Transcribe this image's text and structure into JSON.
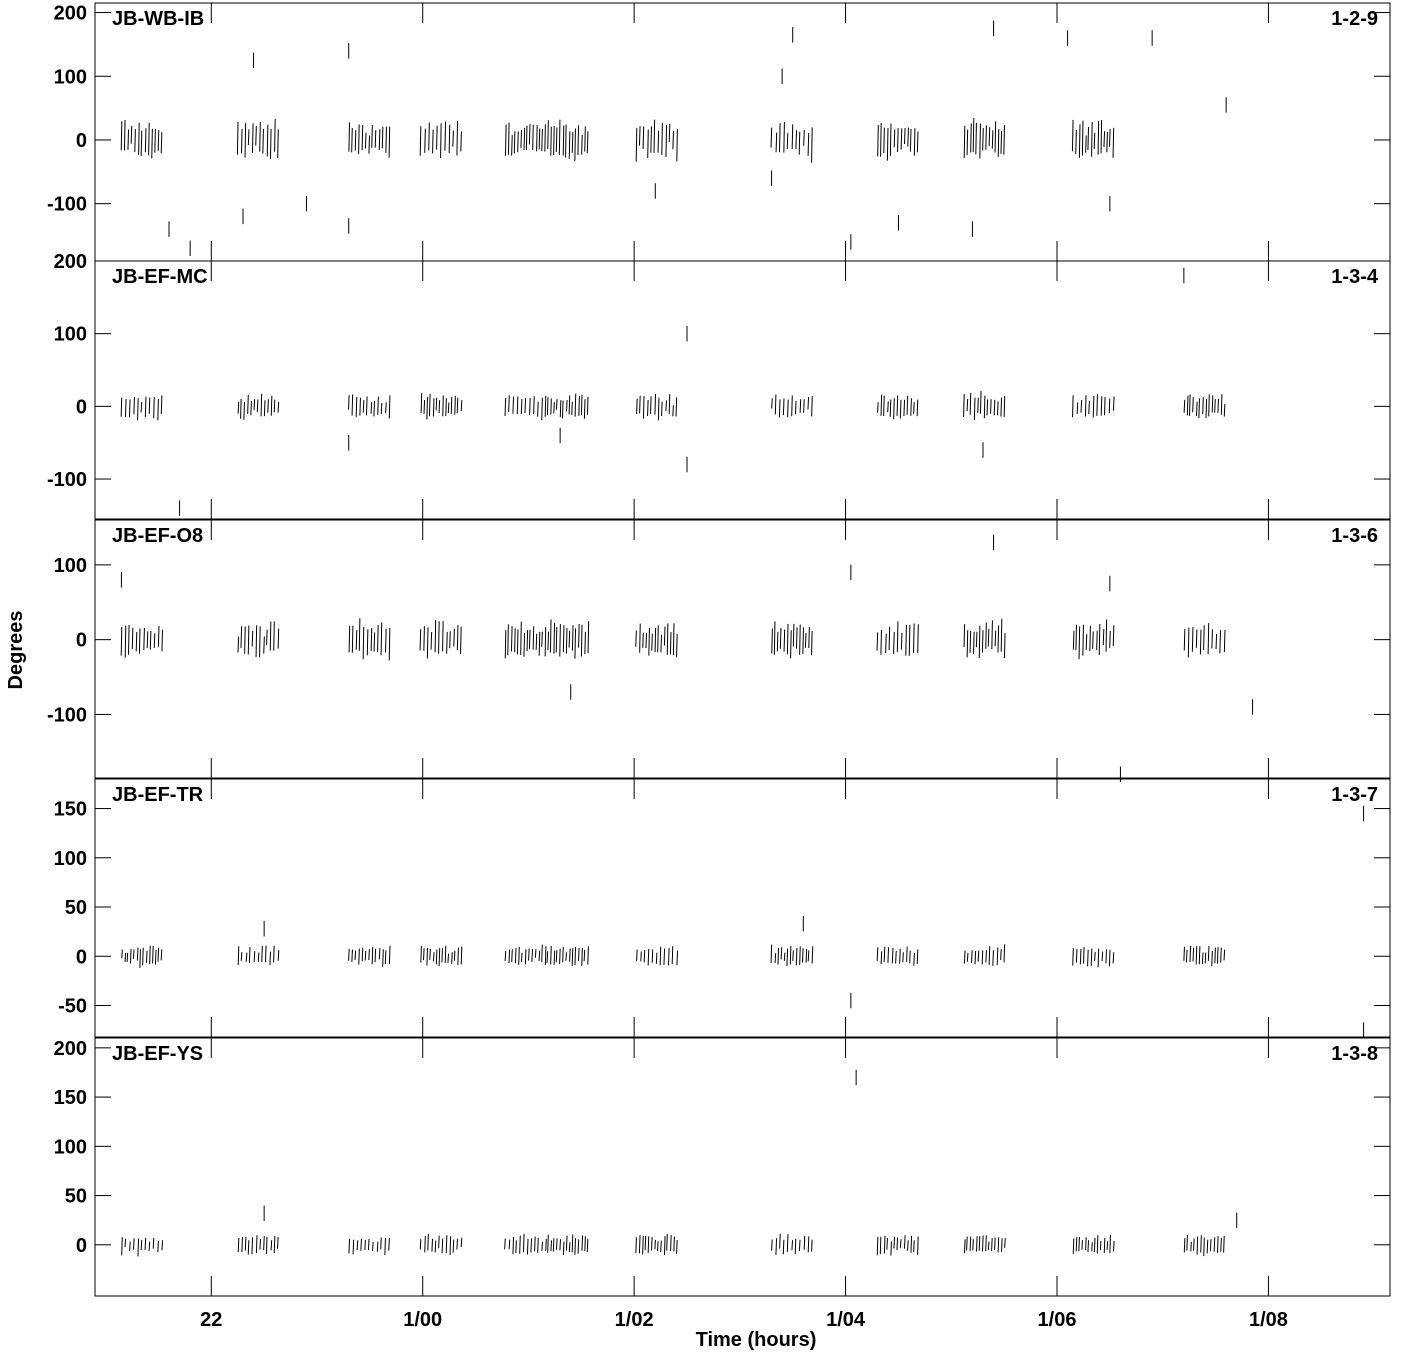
{
  "chart_data": {
    "type": "scatter",
    "xlabel": "Time (hours)",
    "ylabel": "Degrees",
    "x_ticks": [
      {
        "hour": 22,
        "label": "22"
      },
      {
        "hour": 24,
        "label": "1/00"
      },
      {
        "hour": 26,
        "label": "1/02"
      },
      {
        "hour": 28,
        "label": "1/04"
      },
      {
        "hour": 30,
        "label": "1/06"
      },
      {
        "hour": 32,
        "label": "1/08"
      }
    ],
    "xlim": [
      20.9,
      33.15
    ],
    "scan_starts": [
      21.15,
      22.25,
      23.3,
      23.98,
      24.78,
      25.18,
      26.02,
      27.3,
      28.3,
      29.12,
      30.15,
      31.2
    ],
    "panels": [
      {
        "baseline": "JB-WB-IB",
        "code": "1-2-9",
        "ylim": [
          -190,
          215
        ],
        "yticks": [
          200,
          100,
          0,
          -100
        ],
        "spread": 35,
        "n_scans": 12,
        "active_scans": [
          0,
          1,
          2,
          3,
          4,
          5,
          6,
          7,
          8,
          9,
          10
        ],
        "outliers": [
          [
            21.6,
            -140
          ],
          [
            21.8,
            -170
          ],
          [
            22.3,
            -120
          ],
          [
            22.4,
            125
          ],
          [
            22.9,
            -100
          ],
          [
            23.3,
            140
          ],
          [
            23.3,
            -135
          ],
          [
            26.2,
            -80
          ],
          [
            27.3,
            -60
          ],
          [
            27.4,
            100
          ],
          [
            27.5,
            165
          ],
          [
            28.05,
            -160
          ],
          [
            28.5,
            -130
          ],
          [
            29.2,
            -140
          ],
          [
            29.4,
            175
          ],
          [
            30.1,
            160
          ],
          [
            30.5,
            -100
          ],
          [
            30.9,
            160
          ],
          [
            31.6,
            55
          ]
        ]
      },
      {
        "baseline": "JB-EF-MC",
        "code": "1-3-4",
        "ylim": [
          -155,
          200
        ],
        "yticks": [
          200,
          100,
          0,
          -100
        ],
        "spread": 20,
        "n_scans": 12,
        "active_scans": [
          0,
          1,
          2,
          3,
          4,
          5,
          6,
          7,
          8,
          9,
          10,
          11
        ],
        "outliers": [
          [
            21.7,
            -140
          ],
          [
            23.3,
            -50
          ],
          [
            25.3,
            -40
          ],
          [
            26.5,
            100
          ],
          [
            26.5,
            -80
          ],
          [
            29.3,
            -60
          ],
          [
            31.2,
            180
          ]
        ]
      },
      {
        "baseline": "JB-EF-O8",
        "code": "1-3-6",
        "ylim": [
          -185,
          160
        ],
        "yticks": [
          100,
          0,
          -100
        ],
        "spread": 28,
        "n_scans": 12,
        "active_scans": [
          0,
          1,
          2,
          3,
          4,
          5,
          6,
          7,
          8,
          9,
          10,
          11
        ],
        "outliers": [
          [
            21.15,
            80
          ],
          [
            25.4,
            -70
          ],
          [
            28.05,
            90
          ],
          [
            29.4,
            130
          ],
          [
            30.5,
            75
          ],
          [
            30.6,
            -180
          ],
          [
            31.85,
            -90
          ]
        ]
      },
      {
        "baseline": "JB-EF-TR",
        "code": "1-3-7",
        "ylim": [
          -82,
          180
        ],
        "yticks": [
          150,
          100,
          50,
          0,
          -50
        ],
        "spread": 12,
        "n_scans": 12,
        "active_scans": [
          0,
          1,
          2,
          3,
          4,
          5,
          6,
          7,
          8,
          9,
          10,
          11
        ],
        "outliers": [
          [
            22.5,
            28
          ],
          [
            27.6,
            33
          ],
          [
            28.05,
            -45
          ],
          [
            32.9,
            145
          ],
          [
            32.9,
            -75
          ]
        ]
      },
      {
        "baseline": "JB-EF-YS",
        "code": "1-3-8",
        "ylim": [
          -52,
          210
        ],
        "yticks": [
          200,
          150,
          100,
          50,
          0
        ],
        "spread": 12,
        "n_scans": 12,
        "active_scans": [
          0,
          1,
          2,
          3,
          4,
          5,
          6,
          7,
          8,
          9,
          10,
          11
        ],
        "outliers": [
          [
            22.5,
            32
          ],
          [
            28.1,
            170
          ],
          [
            31.7,
            25
          ]
        ]
      }
    ]
  }
}
